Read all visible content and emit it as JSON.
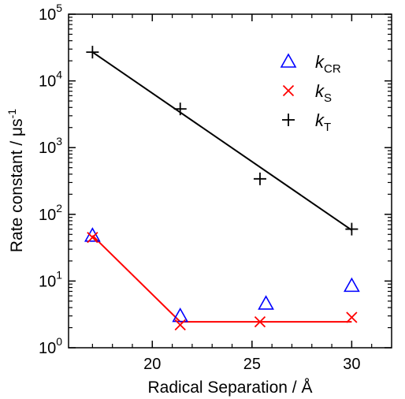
{
  "chart_data": {
    "type": "scatter",
    "xlabel": "Radical Separation / Å",
    "ylabel_main": "Rate constant / μs",
    "ylabel_sup": "-1",
    "xlim": [
      15.8,
      32.0
    ],
    "ylim": [
      1,
      100000
    ],
    "yscale": "log",
    "grid": false,
    "legend_position": "top-right",
    "x_ticks": [
      {
        "value": 20,
        "label": "20"
      },
      {
        "value": 25,
        "label": "25"
      },
      {
        "value": 30,
        "label": "30"
      }
    ],
    "y_ticks": [
      {
        "value": 1,
        "base": "10",
        "exp": "0"
      },
      {
        "value": 10,
        "base": "10",
        "exp": "1"
      },
      {
        "value": 100,
        "base": "10",
        "exp": "2"
      },
      {
        "value": 1000,
        "base": "10",
        "exp": "3"
      },
      {
        "value": 10000,
        "base": "10",
        "exp": "4"
      },
      {
        "value": 100000,
        "base": "10",
        "exp": "5"
      }
    ],
    "series": [
      {
        "name_main": "k",
        "name_sub": "CR",
        "marker": "triangle",
        "color": "#0000ff",
        "x": [
          17.0,
          21.4,
          25.7,
          30.0
        ],
        "y": [
          48,
          3.0,
          4.6,
          8.5
        ]
      },
      {
        "name_main": "k",
        "name_sub": "S",
        "marker": "x",
        "color": "#ff0000",
        "x": [
          17.0,
          21.4,
          25.4,
          30.0
        ],
        "y": [
          45,
          2.2,
          2.45,
          2.85
        ],
        "fit_line": {
          "x": [
            17.0,
            21.4,
            30.0
          ],
          "y": [
            48,
            2.45,
            2.45
          ]
        }
      },
      {
        "name_main": "k",
        "name_sub": "T",
        "marker": "plus",
        "color": "#000000",
        "x": [
          17.0,
          21.4,
          25.4,
          30.0
        ],
        "y": [
          27000,
          3800,
          340,
          60
        ],
        "fit_line": {
          "x": [
            17.0,
            30.0
          ],
          "y": [
            27000,
            58
          ]
        }
      }
    ]
  }
}
